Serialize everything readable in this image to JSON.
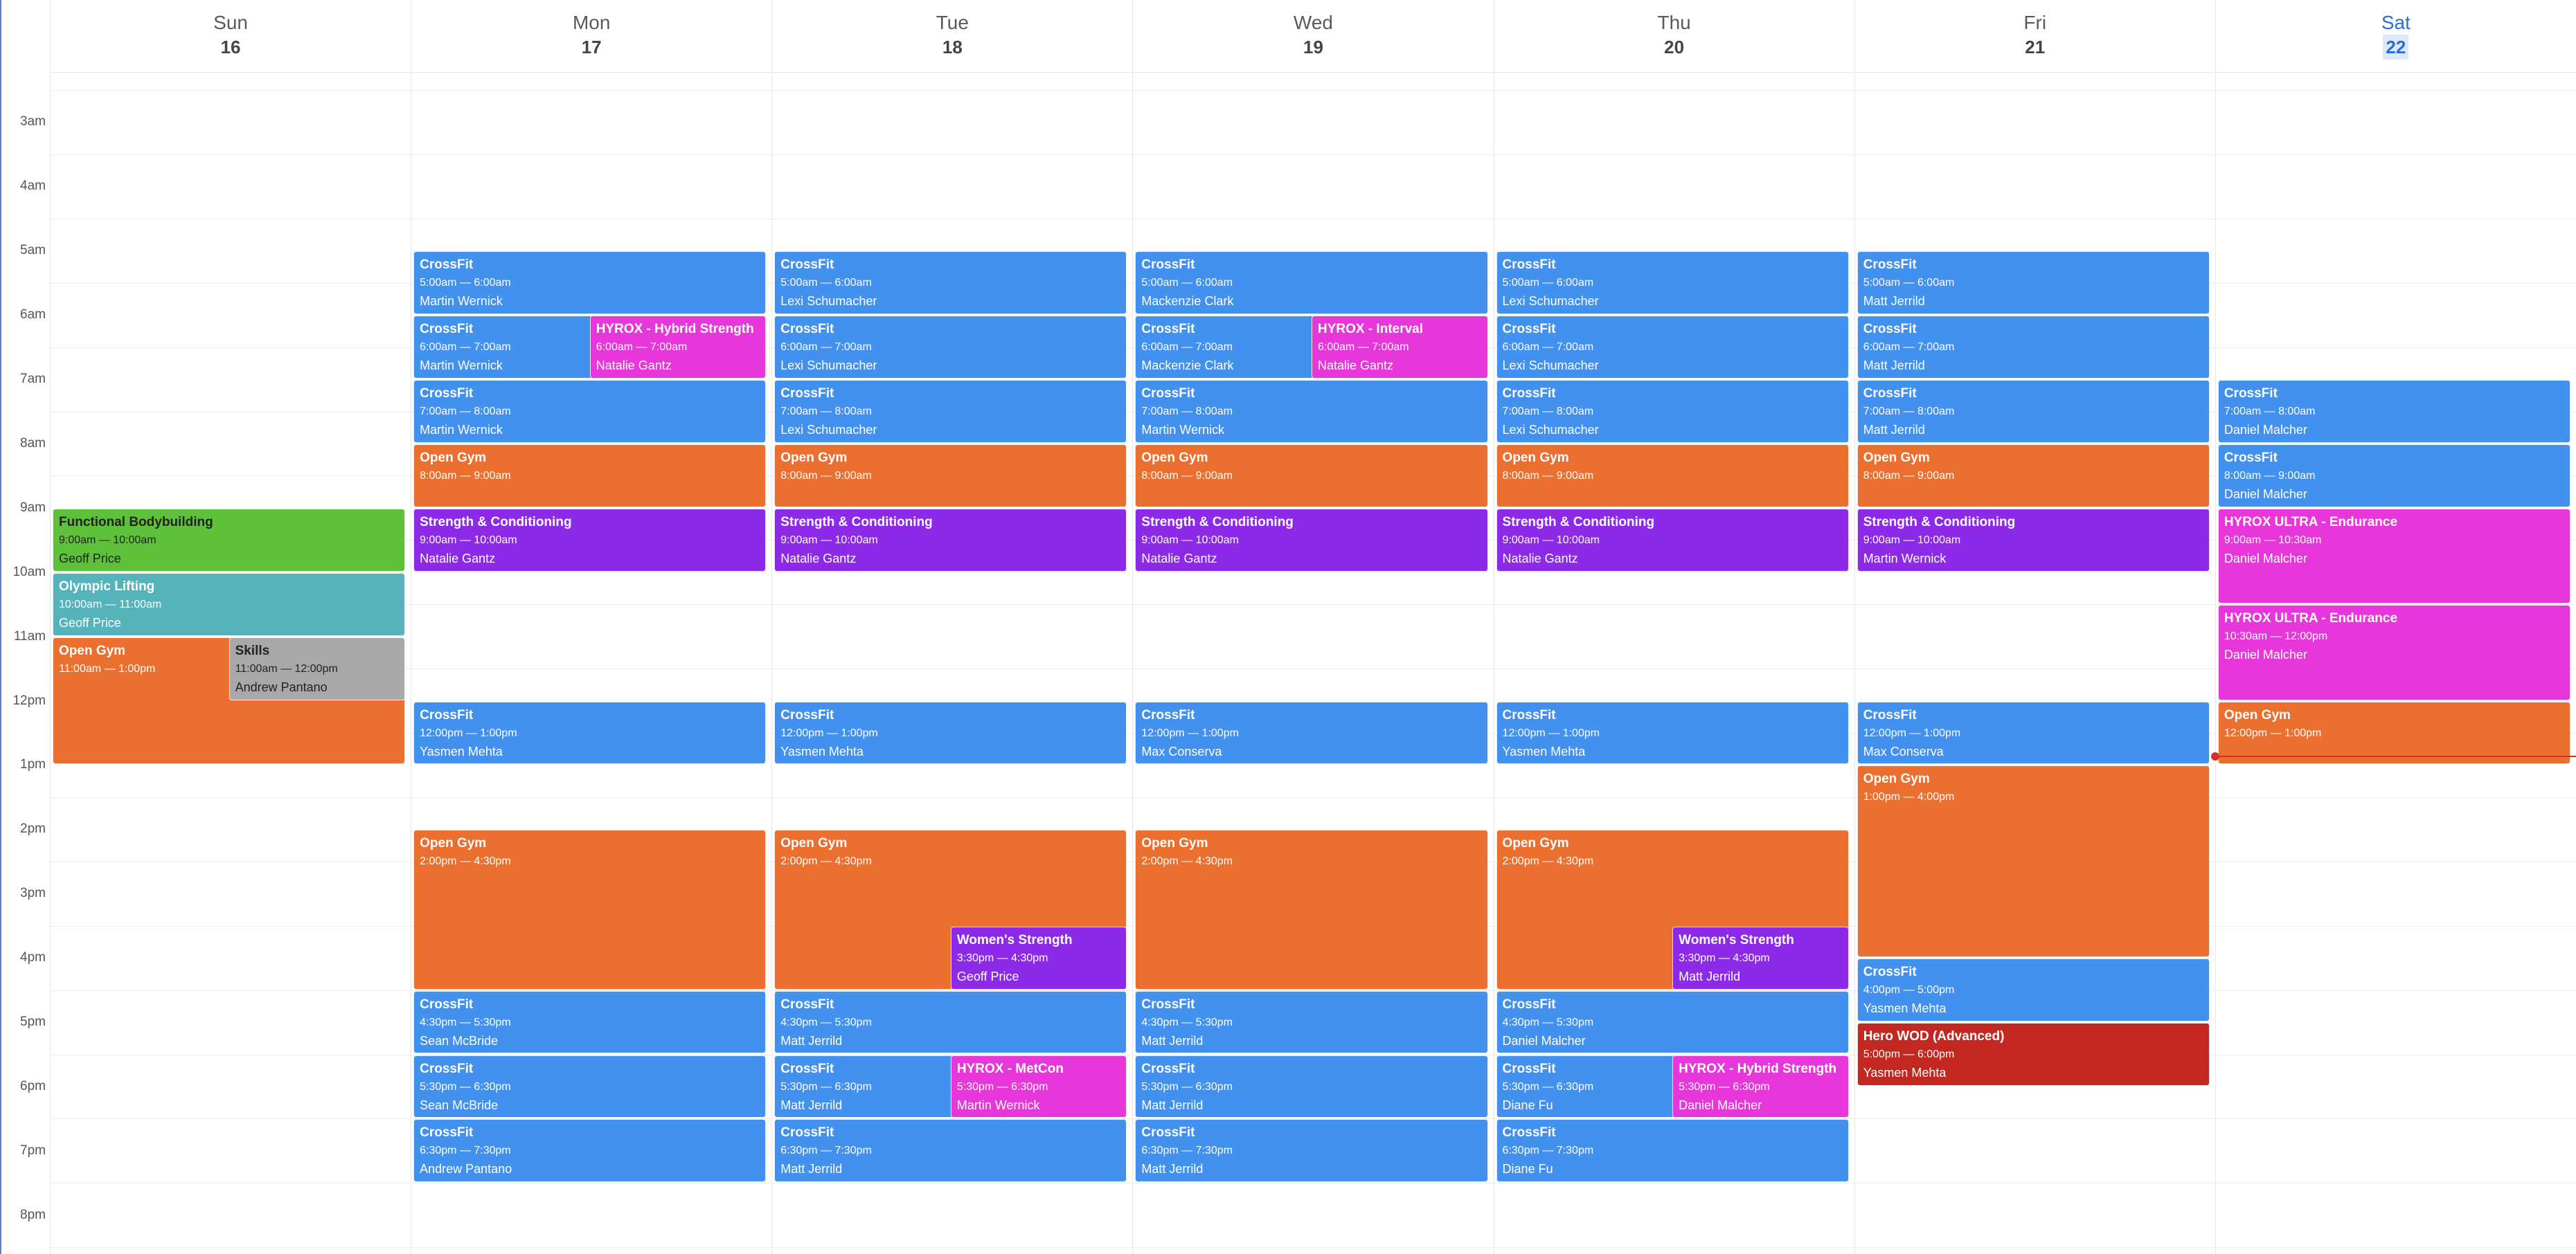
{
  "colors": {
    "crossfit": "#4391ef",
    "opengym": "#eb6f2e",
    "strength": "#8c2ae8",
    "hyrox": "#e736d9",
    "functional": "#5ec13a",
    "olympic": "#55b4bb",
    "skills": "#a8a8a8",
    "herowod": "#c2281f",
    "now": "#d93025"
  },
  "days": [
    {
      "name": "Sun",
      "date": "16"
    },
    {
      "name": "Mon",
      "date": "17"
    },
    {
      "name": "Tue",
      "date": "18"
    },
    {
      "name": "Wed",
      "date": "19"
    },
    {
      "name": "Thu",
      "date": "20"
    },
    {
      "name": "Fri",
      "date": "21"
    },
    {
      "name": "Sat",
      "date": "22",
      "today": true
    }
  ],
  "hours": [
    "3am",
    "4am",
    "5am",
    "6am",
    "7am",
    "8am",
    "9am",
    "10am",
    "11am",
    "12pm",
    "1pm",
    "2pm",
    "3pm",
    "4pm",
    "5pm",
    "6pm",
    "7pm",
    "8pm"
  ],
  "current_time_hour": 12.85,
  "events": [
    {
      "day": 0,
      "title": "Functional Bodybuilding",
      "time": "9:00am — 10:00am",
      "instructor": "Geoff Price",
      "start": 9,
      "end": 10,
      "type": "functional",
      "dark": true
    },
    {
      "day": 0,
      "title": "Olympic Lifting",
      "time": "10:00am — 11:00am",
      "instructor": "Geoff Price",
      "start": 10,
      "end": 11,
      "type": "olympic"
    },
    {
      "day": 0,
      "title": "Open Gym",
      "time": "11:00am — 1:00pm",
      "instructor": "",
      "start": 11,
      "end": 13,
      "type": "opengym"
    },
    {
      "day": 0,
      "title": "Skills",
      "time": "11:00am — 12:00pm",
      "instructor": "Andrew Pantano",
      "start": 11,
      "end": 12,
      "type": "skills",
      "half": "right",
      "dark": true
    },
    {
      "day": 1,
      "title": "CrossFit",
      "time": "5:00am — 6:00am",
      "instructor": "Martin Wernick",
      "start": 5,
      "end": 6,
      "type": "crossfit"
    },
    {
      "day": 1,
      "title": "CrossFit",
      "time": "6:00am — 7:00am",
      "instructor": "Martin Wernick",
      "start": 6,
      "end": 7,
      "type": "crossfit"
    },
    {
      "day": 1,
      "title": "HYROX - Hybrid Strength",
      "time": "6:00am — 7:00am",
      "instructor": "Natalie Gantz",
      "start": 6,
      "end": 7,
      "type": "hyrox",
      "half": "right"
    },
    {
      "day": 1,
      "title": "CrossFit",
      "time": "7:00am — 8:00am",
      "instructor": "Martin Wernick",
      "start": 7,
      "end": 8,
      "type": "crossfit"
    },
    {
      "day": 1,
      "title": "Open Gym",
      "time": "8:00am — 9:00am",
      "instructor": "",
      "start": 8,
      "end": 9,
      "type": "opengym"
    },
    {
      "day": 1,
      "title": "Strength & Conditioning",
      "time": "9:00am — 10:00am",
      "instructor": "Natalie Gantz",
      "start": 9,
      "end": 10,
      "type": "strength"
    },
    {
      "day": 1,
      "title": "CrossFit",
      "time": "12:00pm — 1:00pm",
      "instructor": "Yasmen Mehta",
      "start": 12,
      "end": 13,
      "type": "crossfit"
    },
    {
      "day": 1,
      "title": "Open Gym",
      "time": "2:00pm — 4:30pm",
      "instructor": "",
      "start": 14,
      "end": 16.5,
      "type": "opengym"
    },
    {
      "day": 1,
      "title": "CrossFit",
      "time": "4:30pm — 5:30pm",
      "instructor": "Sean McBride",
      "start": 16.5,
      "end": 17.5,
      "type": "crossfit"
    },
    {
      "day": 1,
      "title": "CrossFit",
      "time": "5:30pm — 6:30pm",
      "instructor": "Sean McBride",
      "start": 17.5,
      "end": 18.5,
      "type": "crossfit"
    },
    {
      "day": 1,
      "title": "CrossFit",
      "time": "6:30pm — 7:30pm",
      "instructor": "Andrew Pantano",
      "start": 18.5,
      "end": 19.5,
      "type": "crossfit"
    },
    {
      "day": 2,
      "title": "CrossFit",
      "time": "5:00am — 6:00am",
      "instructor": "Lexi Schumacher",
      "start": 5,
      "end": 6,
      "type": "crossfit"
    },
    {
      "day": 2,
      "title": "CrossFit",
      "time": "6:00am — 7:00am",
      "instructor": "Lexi Schumacher",
      "start": 6,
      "end": 7,
      "type": "crossfit"
    },
    {
      "day": 2,
      "title": "CrossFit",
      "time": "7:00am — 8:00am",
      "instructor": "Lexi Schumacher",
      "start": 7,
      "end": 8,
      "type": "crossfit"
    },
    {
      "day": 2,
      "title": "Open Gym",
      "time": "8:00am — 9:00am",
      "instructor": "",
      "start": 8,
      "end": 9,
      "type": "opengym"
    },
    {
      "day": 2,
      "title": "Strength & Conditioning",
      "time": "9:00am — 10:00am",
      "instructor": "Natalie Gantz",
      "start": 9,
      "end": 10,
      "type": "strength"
    },
    {
      "day": 2,
      "title": "CrossFit",
      "time": "12:00pm — 1:00pm",
      "instructor": "Yasmen Mehta",
      "start": 12,
      "end": 13,
      "type": "crossfit"
    },
    {
      "day": 2,
      "title": "Open Gym",
      "time": "2:00pm — 4:30pm",
      "instructor": "",
      "start": 14,
      "end": 16.5,
      "type": "opengym"
    },
    {
      "day": 2,
      "title": "Women's Strength",
      "time": "3:30pm — 4:30pm",
      "instructor": "Geoff Price",
      "start": 15.5,
      "end": 16.5,
      "type": "strength",
      "half": "right"
    },
    {
      "day": 2,
      "title": "CrossFit",
      "time": "4:30pm — 5:30pm",
      "instructor": "Matt Jerrild",
      "start": 16.5,
      "end": 17.5,
      "type": "crossfit"
    },
    {
      "day": 2,
      "title": "CrossFit",
      "time": "5:30pm — 6:30pm",
      "instructor": "Matt Jerrild",
      "start": 17.5,
      "end": 18.5,
      "type": "crossfit"
    },
    {
      "day": 2,
      "title": "HYROX - MetCon",
      "time": "5:30pm — 6:30pm",
      "instructor": "Martin Wernick",
      "start": 17.5,
      "end": 18.5,
      "type": "hyrox",
      "half": "right"
    },
    {
      "day": 2,
      "title": "CrossFit",
      "time": "6:30pm — 7:30pm",
      "instructor": "Matt Jerrild",
      "start": 18.5,
      "end": 19.5,
      "type": "crossfit"
    },
    {
      "day": 3,
      "title": "CrossFit",
      "time": "5:00am — 6:00am",
      "instructor": "Mackenzie Clark",
      "start": 5,
      "end": 6,
      "type": "crossfit"
    },
    {
      "day": 3,
      "title": "CrossFit",
      "time": "6:00am — 7:00am",
      "instructor": "Mackenzie Clark",
      "start": 6,
      "end": 7,
      "type": "crossfit"
    },
    {
      "day": 3,
      "title": "HYROX - Interval",
      "time": "6:00am — 7:00am",
      "instructor": "Natalie Gantz",
      "start": 6,
      "end": 7,
      "type": "hyrox",
      "half": "right"
    },
    {
      "day": 3,
      "title": "CrossFit",
      "time": "7:00am — 8:00am",
      "instructor": "Martin Wernick",
      "start": 7,
      "end": 8,
      "type": "crossfit"
    },
    {
      "day": 3,
      "title": "Open Gym",
      "time": "8:00am — 9:00am",
      "instructor": "",
      "start": 8,
      "end": 9,
      "type": "opengym"
    },
    {
      "day": 3,
      "title": "Strength & Conditioning",
      "time": "9:00am — 10:00am",
      "instructor": "Natalie Gantz",
      "start": 9,
      "end": 10,
      "type": "strength"
    },
    {
      "day": 3,
      "title": "CrossFit",
      "time": "12:00pm — 1:00pm",
      "instructor": "Max Conserva",
      "start": 12,
      "end": 13,
      "type": "crossfit"
    },
    {
      "day": 3,
      "title": "Open Gym",
      "time": "2:00pm — 4:30pm",
      "instructor": "",
      "start": 14,
      "end": 16.5,
      "type": "opengym"
    },
    {
      "day": 3,
      "title": "CrossFit",
      "time": "4:30pm — 5:30pm",
      "instructor": "Matt Jerrild",
      "start": 16.5,
      "end": 17.5,
      "type": "crossfit"
    },
    {
      "day": 3,
      "title": "CrossFit",
      "time": "5:30pm — 6:30pm",
      "instructor": "Matt Jerrild",
      "start": 17.5,
      "end": 18.5,
      "type": "crossfit"
    },
    {
      "day": 3,
      "title": "CrossFit",
      "time": "6:30pm — 7:30pm",
      "instructor": "Matt Jerrild",
      "start": 18.5,
      "end": 19.5,
      "type": "crossfit"
    },
    {
      "day": 4,
      "title": "CrossFit",
      "time": "5:00am — 6:00am",
      "instructor": "Lexi Schumacher",
      "start": 5,
      "end": 6,
      "type": "crossfit"
    },
    {
      "day": 4,
      "title": "CrossFit",
      "time": "6:00am — 7:00am",
      "instructor": "Lexi Schumacher",
      "start": 6,
      "end": 7,
      "type": "crossfit"
    },
    {
      "day": 4,
      "title": "CrossFit",
      "time": "7:00am — 8:00am",
      "instructor": "Lexi Schumacher",
      "start": 7,
      "end": 8,
      "type": "crossfit"
    },
    {
      "day": 4,
      "title": "Open Gym",
      "time": "8:00am — 9:00am",
      "instructor": "",
      "start": 8,
      "end": 9,
      "type": "opengym"
    },
    {
      "day": 4,
      "title": "Strength & Conditioning",
      "time": "9:00am — 10:00am",
      "instructor": "Natalie Gantz",
      "start": 9,
      "end": 10,
      "type": "strength"
    },
    {
      "day": 4,
      "title": "CrossFit",
      "time": "12:00pm — 1:00pm",
      "instructor": "Yasmen Mehta",
      "start": 12,
      "end": 13,
      "type": "crossfit"
    },
    {
      "day": 4,
      "title": "Open Gym",
      "time": "2:00pm — 4:30pm",
      "instructor": "",
      "start": 14,
      "end": 16.5,
      "type": "opengym"
    },
    {
      "day": 4,
      "title": "Women's Strength",
      "time": "3:30pm — 4:30pm",
      "instructor": "Matt Jerrild",
      "start": 15.5,
      "end": 16.5,
      "type": "strength",
      "half": "right"
    },
    {
      "day": 4,
      "title": "CrossFit",
      "time": "4:30pm — 5:30pm",
      "instructor": "Daniel Malcher",
      "start": 16.5,
      "end": 17.5,
      "type": "crossfit"
    },
    {
      "day": 4,
      "title": "CrossFit",
      "time": "5:30pm — 6:30pm",
      "instructor": "Diane Fu",
      "start": 17.5,
      "end": 18.5,
      "type": "crossfit"
    },
    {
      "day": 4,
      "title": "HYROX - Hybrid Strength",
      "time": "5:30pm — 6:30pm",
      "instructor": "Daniel Malcher",
      "start": 17.5,
      "end": 18.5,
      "type": "hyrox",
      "half": "right"
    },
    {
      "day": 4,
      "title": "CrossFit",
      "time": "6:30pm — 7:30pm",
      "instructor": "Diane Fu",
      "start": 18.5,
      "end": 19.5,
      "type": "crossfit"
    },
    {
      "day": 5,
      "title": "CrossFit",
      "time": "5:00am — 6:00am",
      "instructor": "Matt Jerrild",
      "start": 5,
      "end": 6,
      "type": "crossfit"
    },
    {
      "day": 5,
      "title": "CrossFit",
      "time": "6:00am — 7:00am",
      "instructor": "Matt Jerrild",
      "start": 6,
      "end": 7,
      "type": "crossfit"
    },
    {
      "day": 5,
      "title": "CrossFit",
      "time": "7:00am — 8:00am",
      "instructor": "Matt Jerrild",
      "start": 7,
      "end": 8,
      "type": "crossfit"
    },
    {
      "day": 5,
      "title": "Open Gym",
      "time": "8:00am — 9:00am",
      "instructor": "",
      "start": 8,
      "end": 9,
      "type": "opengym"
    },
    {
      "day": 5,
      "title": "Strength & Conditioning",
      "time": "9:00am — 10:00am",
      "instructor": "Martin Wernick",
      "start": 9,
      "end": 10,
      "type": "strength"
    },
    {
      "day": 5,
      "title": "CrossFit",
      "time": "12:00pm — 1:00pm",
      "instructor": "Max Conserva",
      "start": 12,
      "end": 13,
      "type": "crossfit"
    },
    {
      "day": 5,
      "title": "Open Gym",
      "time": "1:00pm — 4:00pm",
      "instructor": "",
      "start": 13,
      "end": 16,
      "type": "opengym"
    },
    {
      "day": 5,
      "title": "CrossFit",
      "time": "4:00pm — 5:00pm",
      "instructor": "Yasmen Mehta",
      "start": 16,
      "end": 17,
      "type": "crossfit"
    },
    {
      "day": 5,
      "title": "Hero WOD (Advanced)",
      "time": "5:00pm — 6:00pm",
      "instructor": "Yasmen Mehta",
      "start": 17,
      "end": 18,
      "type": "herowod"
    },
    {
      "day": 6,
      "title": "CrossFit",
      "time": "7:00am — 8:00am",
      "instructor": "Daniel Malcher",
      "start": 7,
      "end": 8,
      "type": "crossfit"
    },
    {
      "day": 6,
      "title": "CrossFit",
      "time": "8:00am — 9:00am",
      "instructor": "Daniel Malcher",
      "start": 8,
      "end": 9,
      "type": "crossfit"
    },
    {
      "day": 6,
      "title": "HYROX ULTRA - Endurance",
      "time": "9:00am — 10:30am",
      "instructor": "Daniel Malcher",
      "start": 9,
      "end": 10.5,
      "type": "hyrox"
    },
    {
      "day": 6,
      "title": "HYROX ULTRA - Endurance",
      "time": "10:30am — 12:00pm",
      "instructor": "Daniel Malcher",
      "start": 10.5,
      "end": 12,
      "type": "hyrox"
    },
    {
      "day": 6,
      "title": "Open Gym",
      "time": "12:00pm — 1:00pm",
      "instructor": "",
      "start": 12,
      "end": 13,
      "type": "opengym"
    }
  ]
}
